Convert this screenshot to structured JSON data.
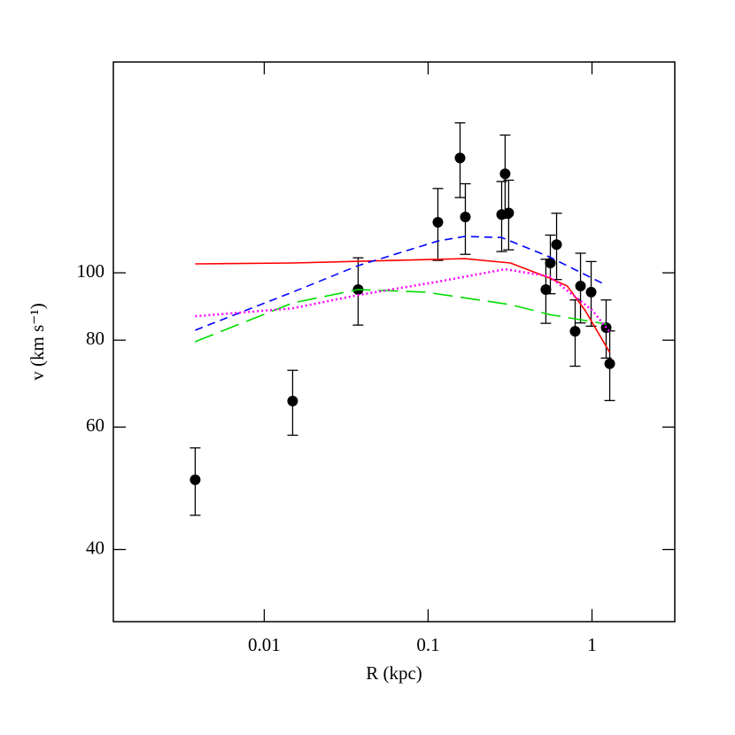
{
  "chart_data": {
    "type": "line",
    "x_label": "R (kpc)",
    "y_label": "v (km s⁻¹)",
    "xscale": "log",
    "yscale": "log",
    "xlim": [
      0.0012,
      3.2
    ],
    "ylim": [
      31.5,
      201
    ],
    "xticks": [
      0.01,
      0.1,
      1
    ],
    "yticks": [
      40,
      60,
      80,
      100
    ],
    "series": [
      {
        "type": "scatter",
        "color": "#000000",
        "x": [
          0.00379,
          0.0149,
          0.0374,
          0.1147,
          0.1566,
          0.1687,
          0.281,
          0.295,
          0.31,
          0.523,
          0.557,
          0.608,
          0.789,
          0.851,
          0.988,
          1.22,
          1.283
        ],
        "values": [
          50.4,
          65.4,
          94.6,
          118.2,
          146.3,
          120.3,
          121.3,
          138.8,
          121.9,
          94.6,
          103.3,
          109.8,
          82.4,
          95.7,
          93.8,
          83.4,
          74.0
        ],
        "errors": [
          5.6,
          7,
          10.5,
          14,
          18,
          14,
          14,
          19,
          14,
          10,
          10,
          12,
          9,
          11,
          10,
          8,
          8.5
        ]
      },
      {
        "type": "line",
        "color": "#ff0000",
        "linestyle": "solid",
        "x": [
          0.00379,
          0.0149,
          0.167,
          0.318,
          0.55,
          0.706,
          0.905,
          1.283
        ],
        "values": [
          103.0,
          103.3,
          104.8,
          103.3,
          98.3,
          95.7,
          88.4,
          76.8
        ]
      },
      {
        "type": "line",
        "color": "#0000ff",
        "linestyle": "dashed",
        "x": [
          0.00379,
          0.0149,
          0.0374,
          0.1147,
          0.167,
          0.281,
          0.55,
          1.22
        ],
        "values": [
          82.7,
          93.8,
          102.4,
          111.1,
          112.8,
          112.4,
          105.4,
          96
        ]
      },
      {
        "type": "line",
        "color": "#00dd00",
        "linestyle": "longdashed",
        "x": [
          0.00379,
          0.0149,
          0.0374,
          0.0964,
          0.318,
          0.55,
          1.22
        ],
        "values": [
          79.6,
          90.5,
          94.6,
          93.8,
          90,
          87.1,
          84.4
        ]
      },
      {
        "type": "line",
        "color": "#ff00ff",
        "linestyle": "dotted",
        "x": [
          0.00379,
          0.0149,
          0.0374,
          0.1147,
          0.295,
          0.55,
          1,
          1.283
        ],
        "values": [
          86.6,
          88.9,
          92.9,
          97.1,
          101.2,
          98.8,
          88.4,
          82.2
        ]
      }
    ]
  }
}
